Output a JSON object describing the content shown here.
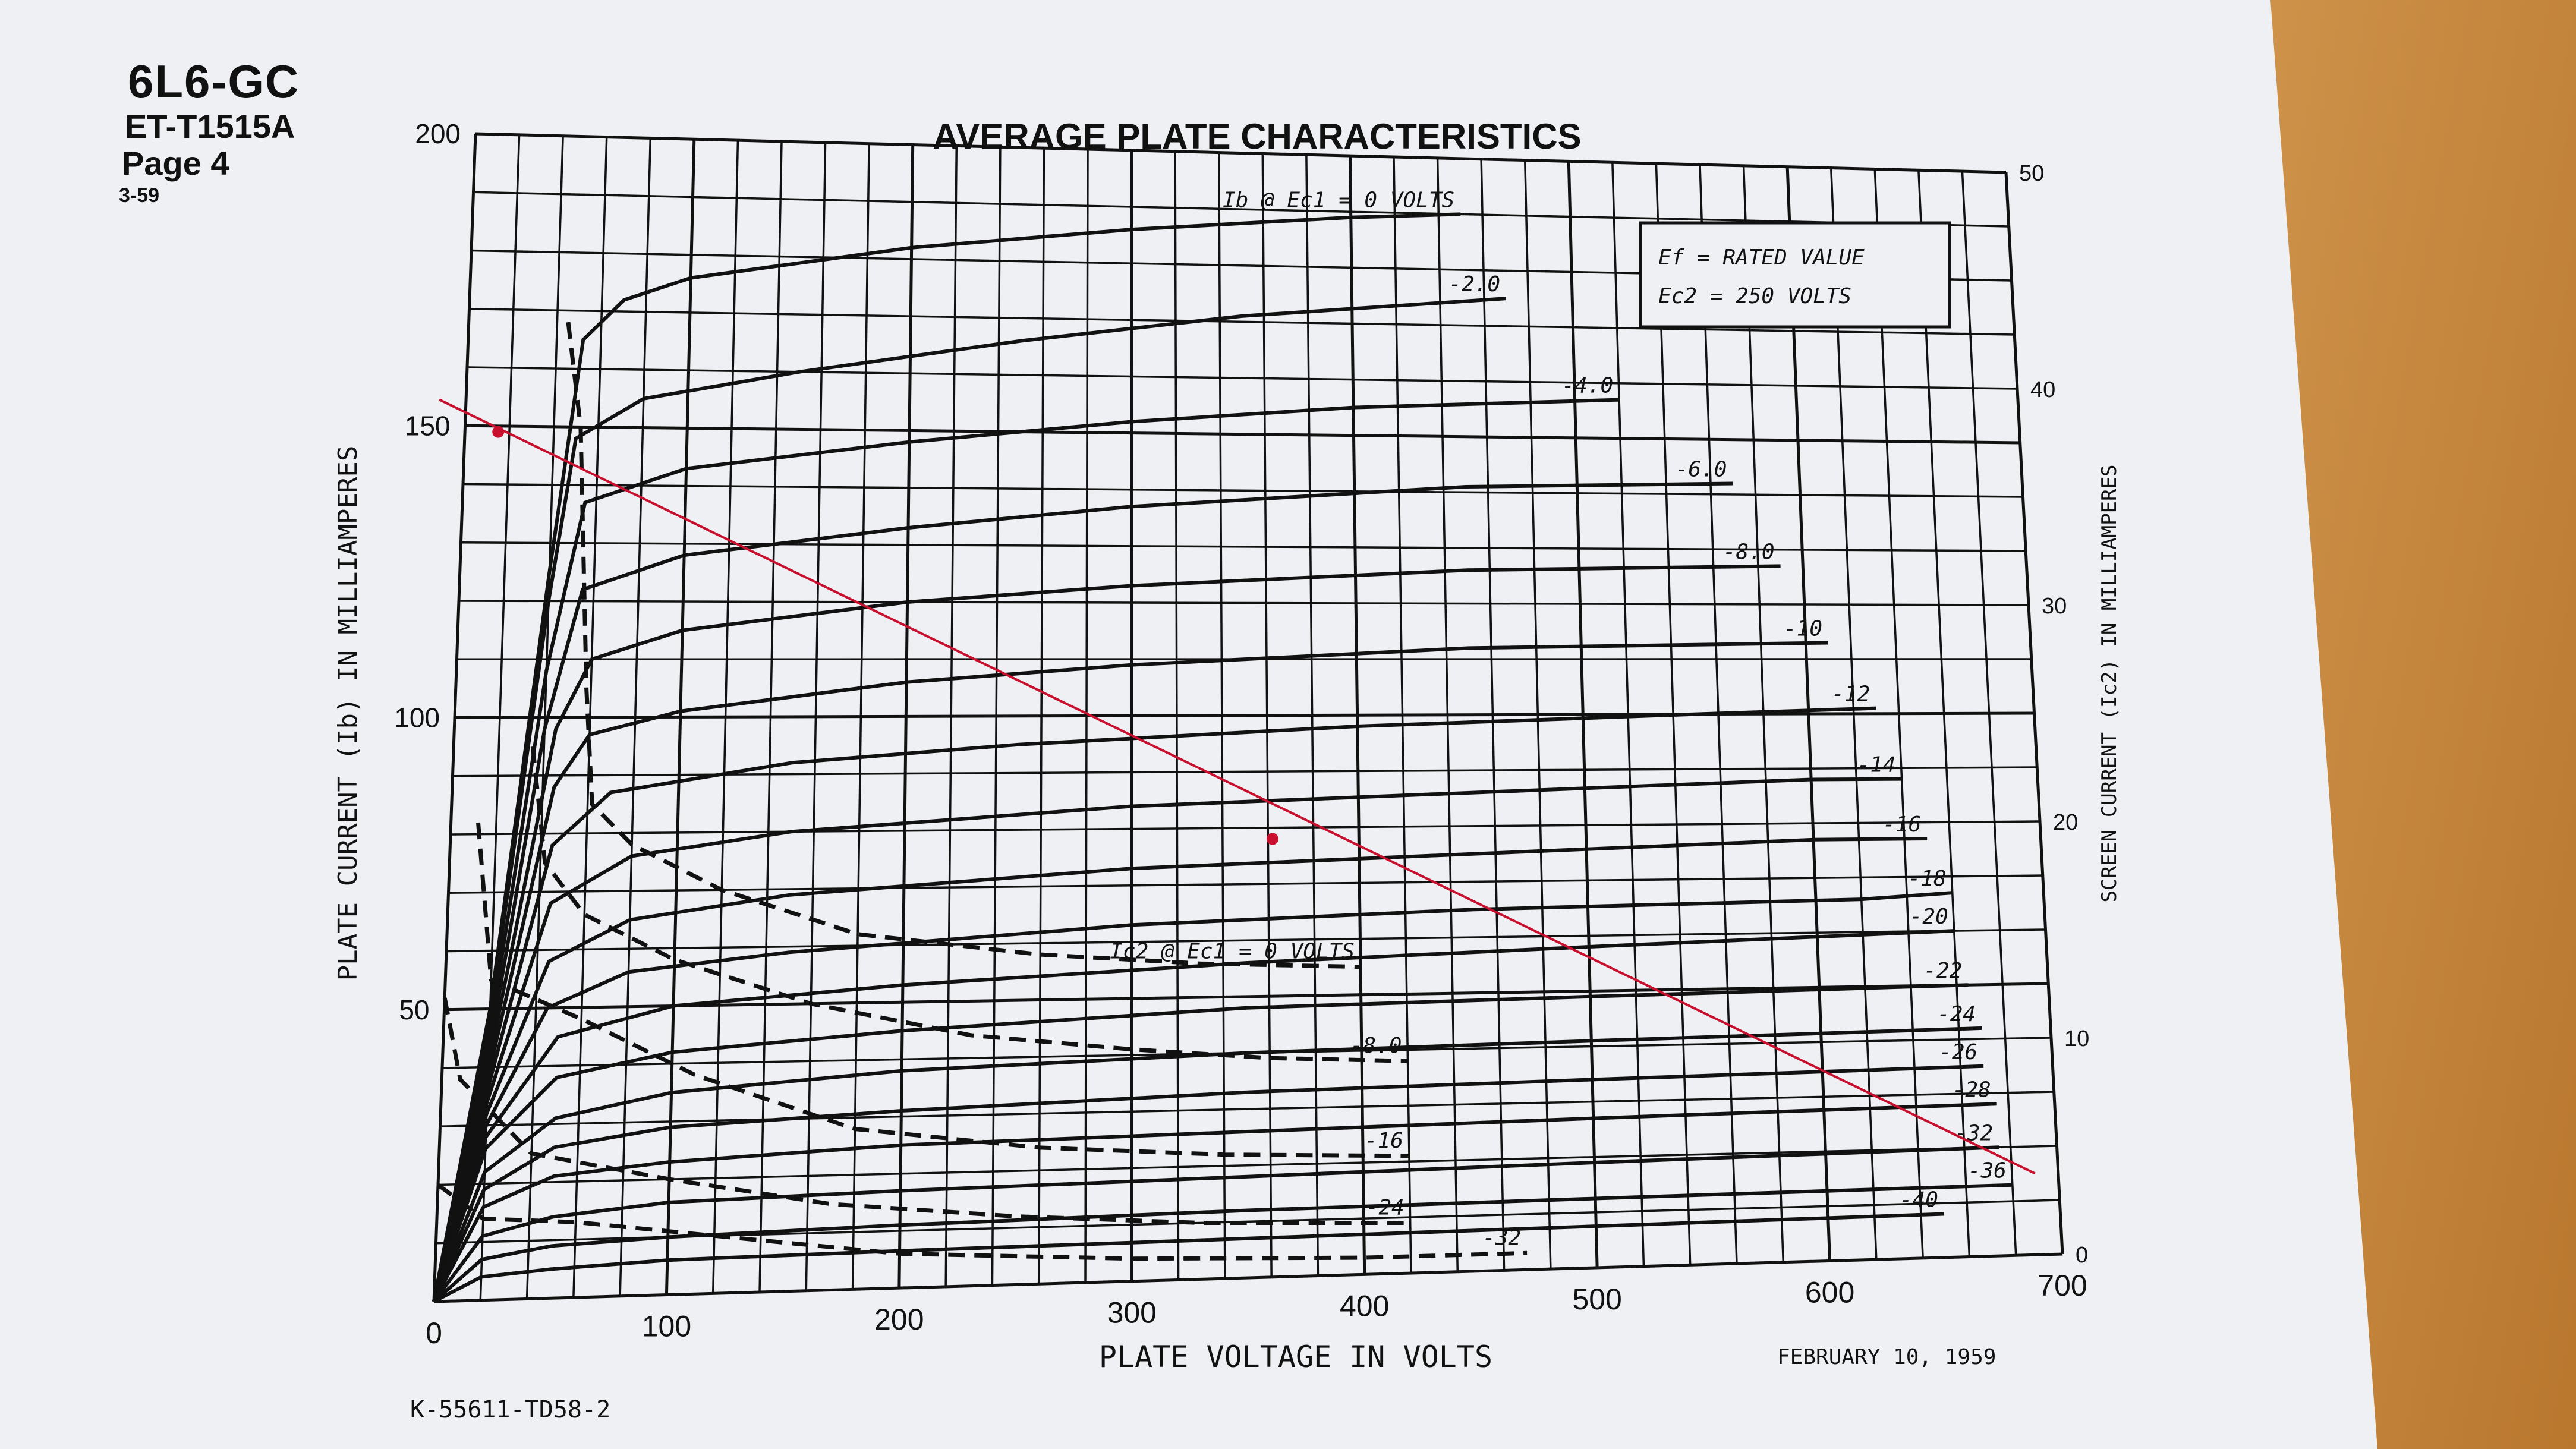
{
  "header": {
    "model": "6L6-GC",
    "code": "ET-T1515A",
    "page": "Page 4",
    "rev": "3-59"
  },
  "footer": {
    "drawing_no": "K-55611-TD58-2",
    "date": "FEBRUARY 10, 1959"
  },
  "colors": {
    "paper": "#eef0f4",
    "ink": "#111111",
    "load_line": "#c8102e",
    "wood": "#c98a3a"
  },
  "chart_data": {
    "type": "line",
    "title": "AVERAGE PLATE CHARACTERISTICS",
    "xlabel": "PLATE VOLTAGE IN VOLTS",
    "ylabel": "PLATE CURRENT (Ib) IN MILLIAMPERES",
    "y2label": "SCREEN CURRENT (Ic2) IN MILLIAMPERES",
    "xlim": [
      0,
      700
    ],
    "ylim": [
      0,
      200
    ],
    "y2lim": [
      0,
      50
    ],
    "grid": true,
    "x_ticks": [
      "0",
      "100",
      "200",
      "300",
      "400",
      "500",
      "600",
      "700"
    ],
    "y_ticks": [
      "50",
      "100",
      "150",
      "200"
    ],
    "y2_ticks": [
      "0",
      "10",
      "20",
      "30",
      "40",
      "50"
    ],
    "conditions": [
      "Ef = RATED VALUE",
      "Ec2 = 250 VOLTS"
    ],
    "plate_curves": [
      {
        "label": "Ib @ Ec1 = 0 VOLTS",
        "points": [
          [
            0,
            0
          ],
          [
            20,
            50
          ],
          [
            40,
            125
          ],
          [
            52,
            165
          ],
          [
            70,
            172
          ],
          [
            100,
            176
          ],
          [
            200,
            182
          ],
          [
            300,
            186
          ],
          [
            400,
            189
          ],
          [
            450,
            190
          ]
        ]
      },
      {
        "label": "-2.0",
        "points": [
          [
            0,
            0
          ],
          [
            20,
            48
          ],
          [
            40,
            120
          ],
          [
            50,
            148
          ],
          [
            80,
            155
          ],
          [
            150,
            160
          ],
          [
            250,
            166
          ],
          [
            350,
            171
          ],
          [
            470,
            175
          ]
        ]
      },
      {
        "label": "-4.0",
        "points": [
          [
            0,
            0
          ],
          [
            20,
            45
          ],
          [
            40,
            108
          ],
          [
            55,
            137
          ],
          [
            100,
            143
          ],
          [
            200,
            148
          ],
          [
            300,
            152
          ],
          [
            400,
            155
          ],
          [
            520,
            157
          ]
        ]
      },
      {
        "label": "-6.0",
        "points": [
          [
            0,
            0
          ],
          [
            20,
            42
          ],
          [
            40,
            98
          ],
          [
            55,
            122
          ],
          [
            100,
            128
          ],
          [
            200,
            133
          ],
          [
            300,
            137
          ],
          [
            450,
            141
          ],
          [
            570,
            142
          ]
        ]
      },
      {
        "label": "-8.0",
        "points": [
          [
            0,
            0
          ],
          [
            20,
            40
          ],
          [
            45,
            98
          ],
          [
            60,
            110
          ],
          [
            100,
            115
          ],
          [
            200,
            120
          ],
          [
            300,
            123
          ],
          [
            450,
            126
          ],
          [
            590,
            127
          ]
        ]
      },
      {
        "label": "-10",
        "points": [
          [
            0,
            0
          ],
          [
            20,
            38
          ],
          [
            45,
            88
          ],
          [
            60,
            97
          ],
          [
            100,
            101
          ],
          [
            200,
            106
          ],
          [
            300,
            109
          ],
          [
            450,
            112
          ],
          [
            610,
            113
          ]
        ]
      },
      {
        "label": "-12",
        "points": [
          [
            0,
            0
          ],
          [
            20,
            36
          ],
          [
            45,
            78
          ],
          [
            70,
            87
          ],
          [
            150,
            92
          ],
          [
            250,
            95
          ],
          [
            400,
            98
          ],
          [
            550,
            100
          ],
          [
            630,
            101
          ]
        ]
      },
      {
        "label": "-14",
        "points": [
          [
            0,
            0
          ],
          [
            20,
            34
          ],
          [
            45,
            68
          ],
          [
            80,
            76
          ],
          [
            150,
            80
          ],
          [
            300,
            84
          ],
          [
            450,
            86
          ],
          [
            600,
            88
          ],
          [
            640,
            88
          ]
        ]
      },
      {
        "label": "-16",
        "points": [
          [
            0,
            0
          ],
          [
            20,
            32
          ],
          [
            45,
            58
          ],
          [
            80,
            65
          ],
          [
            150,
            69
          ],
          [
            300,
            73
          ],
          [
            450,
            75
          ],
          [
            600,
            77
          ],
          [
            650,
            77
          ]
        ]
      },
      {
        "label": "-18",
        "points": [
          [
            0,
            0
          ],
          [
            20,
            30
          ],
          [
            45,
            50
          ],
          [
            80,
            56
          ],
          [
            150,
            59
          ],
          [
            300,
            63
          ],
          [
            450,
            65
          ],
          [
            620,
            66
          ],
          [
            660,
            67
          ]
        ]
      },
      {
        "label": "-20",
        "points": [
          [
            0,
            0
          ],
          [
            20,
            28
          ],
          [
            50,
            45
          ],
          [
            100,
            50
          ],
          [
            200,
            53
          ],
          [
            350,
            56
          ],
          [
            500,
            58
          ],
          [
            660,
            60
          ]
        ]
      },
      {
        "label": "-22",
        "points": [
          [
            0,
            0
          ],
          [
            20,
            26
          ],
          [
            50,
            38
          ],
          [
            100,
            42
          ],
          [
            200,
            45
          ],
          [
            350,
            48
          ],
          [
            500,
            49
          ],
          [
            665,
            50
          ]
        ]
      },
      {
        "label": "-24",
        "points": [
          [
            0,
            0
          ],
          [
            20,
            22
          ],
          [
            50,
            31
          ],
          [
            100,
            35
          ],
          [
            200,
            38
          ],
          [
            350,
            40
          ],
          [
            500,
            41
          ],
          [
            670,
            42
          ]
        ]
      },
      {
        "label": "-26",
        "points": [
          [
            0,
            0
          ],
          [
            20,
            19
          ],
          [
            50,
            26
          ],
          [
            100,
            29
          ],
          [
            200,
            31
          ],
          [
            350,
            33
          ],
          [
            500,
            34
          ],
          [
            670,
            35
          ]
        ]
      },
      {
        "label": "-28",
        "points": [
          [
            0,
            0
          ],
          [
            20,
            16
          ],
          [
            50,
            21
          ],
          [
            100,
            23
          ],
          [
            200,
            25
          ],
          [
            350,
            26
          ],
          [
            500,
            27
          ],
          [
            675,
            28
          ]
        ]
      },
      {
        "label": "-32",
        "points": [
          [
            0,
            0
          ],
          [
            20,
            11
          ],
          [
            50,
            14
          ],
          [
            100,
            16
          ],
          [
            200,
            17
          ],
          [
            350,
            18
          ],
          [
            500,
            19
          ],
          [
            675,
            20
          ]
        ]
      },
      {
        "label": "-36",
        "points": [
          [
            0,
            0
          ],
          [
            20,
            7
          ],
          [
            50,
            9
          ],
          [
            100,
            10
          ],
          [
            200,
            11
          ],
          [
            350,
            12
          ],
          [
            500,
            12.5
          ],
          [
            680,
            13
          ]
        ]
      },
      {
        "label": "-40",
        "points": [
          [
            0,
            0
          ],
          [
            20,
            4
          ],
          [
            50,
            5
          ],
          [
            100,
            6
          ],
          [
            200,
            6.5
          ],
          [
            350,
            7
          ],
          [
            500,
            7.5
          ],
          [
            650,
            8
          ]
        ]
      }
    ],
    "screen_curves": [
      {
        "label": "Ic2 @ Ec1 = 0 VOLTS",
        "points": [
          [
            45,
            168
          ],
          [
            52,
            150
          ],
          [
            58,
            105
          ],
          [
            62,
            85
          ],
          [
            80,
            78
          ],
          [
            120,
            70
          ],
          [
            180,
            62
          ],
          [
            260,
            58
          ],
          [
            330,
            56
          ],
          [
            400,
            55
          ]
        ]
      },
      {
        "label": "-8.0",
        "points": [
          [
            35,
            95
          ],
          [
            42,
            75
          ],
          [
            60,
            66
          ],
          [
            100,
            58
          ],
          [
            160,
            50
          ],
          [
            230,
            44
          ],
          [
            300,
            41
          ],
          [
            360,
            39
          ],
          [
            420,
            38
          ]
        ]
      },
      {
        "label": "-16",
        "points": [
          [
            12,
            82
          ],
          [
            20,
            55
          ],
          [
            60,
            48
          ],
          [
            110,
            38
          ],
          [
            180,
            28
          ],
          [
            260,
            24
          ],
          [
            340,
            22
          ],
          [
            420,
            21
          ]
        ]
      },
      {
        "label": "-24",
        "points": [
          [
            0,
            52
          ],
          [
            8,
            38
          ],
          [
            40,
            25
          ],
          [
            100,
            20
          ],
          [
            170,
            15
          ],
          [
            250,
            12
          ],
          [
            330,
            10
          ],
          [
            420,
            9
          ]
        ]
      },
      {
        "label": "-32",
        "points": [
          [
            0,
            20
          ],
          [
            20,
            14
          ],
          [
            60,
            13
          ],
          [
            120,
            10
          ],
          [
            200,
            6
          ],
          [
            300,
            4
          ],
          [
            400,
            3
          ],
          [
            470,
            3
          ]
        ]
      }
    ],
    "load_line": {
      "points": [
        [
          0,
          152
        ],
        [
          690,
          15
        ]
      ],
      "markers": [
        [
          15,
          149
        ],
        [
          362,
          78
        ]
      ]
    }
  }
}
